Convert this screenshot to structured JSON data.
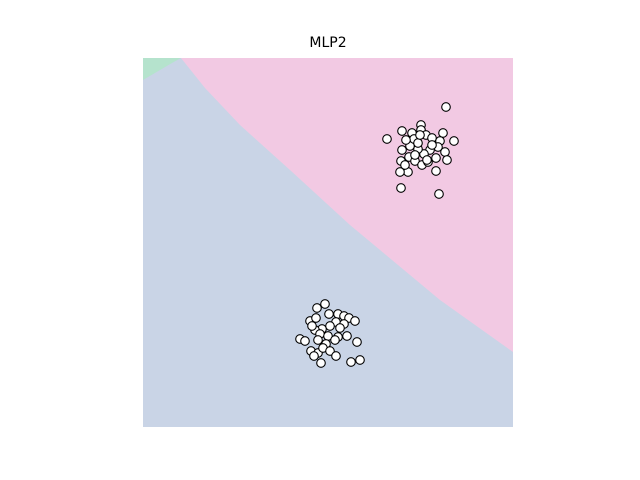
{
  "chart_data": {
    "type": "scatter",
    "title": "MLP2",
    "xlim": [
      0,
      370
    ],
    "ylim": [
      0,
      369
    ],
    "marker_fill": "#ffffff",
    "marker_edge": "#000000",
    "x": [
      303,
      244,
      259,
      269,
      278,
      278,
      283,
      289,
      300,
      311,
      297,
      295,
      302,
      304,
      293,
      287,
      281,
      275,
      267,
      259,
      258,
      266,
      272,
      279,
      285,
      293,
      265,
      257,
      258,
      296,
      271,
      263,
      275,
      289,
      284,
      272,
      262,
      277,
      182,
      174,
      167,
      173,
      186,
      195,
      201,
      206,
      212,
      193,
      201,
      187,
      179,
      172,
      177,
      185,
      195,
      204,
      214,
      157,
      162,
      175,
      183,
      192,
      168,
      175,
      180,
      187,
      193,
      178,
      208,
      217,
      171,
      197,
      169
    ],
    "values": [
      320,
      288,
      296,
      294,
      302,
      297,
      292,
      289,
      294,
      286,
      286,
      280,
      275,
      267,
      269,
      277,
      273,
      278,
      281,
      277,
      266,
      270,
      266,
      262,
      265,
      256,
      255,
      255,
      239,
      233,
      288,
      287,
      284,
      282,
      267,
      272,
      262,
      292,
      123,
      119,
      106,
      109,
      113,
      113,
      111,
      109,
      106,
      105,
      103,
      101,
      98,
      97,
      93,
      91,
      90,
      91,
      85,
      88,
      86,
      87,
      83,
      87,
      76,
      74,
      79,
      76,
      71,
      64,
      65,
      67,
      71,
      99,
      101
    ]
  }
}
